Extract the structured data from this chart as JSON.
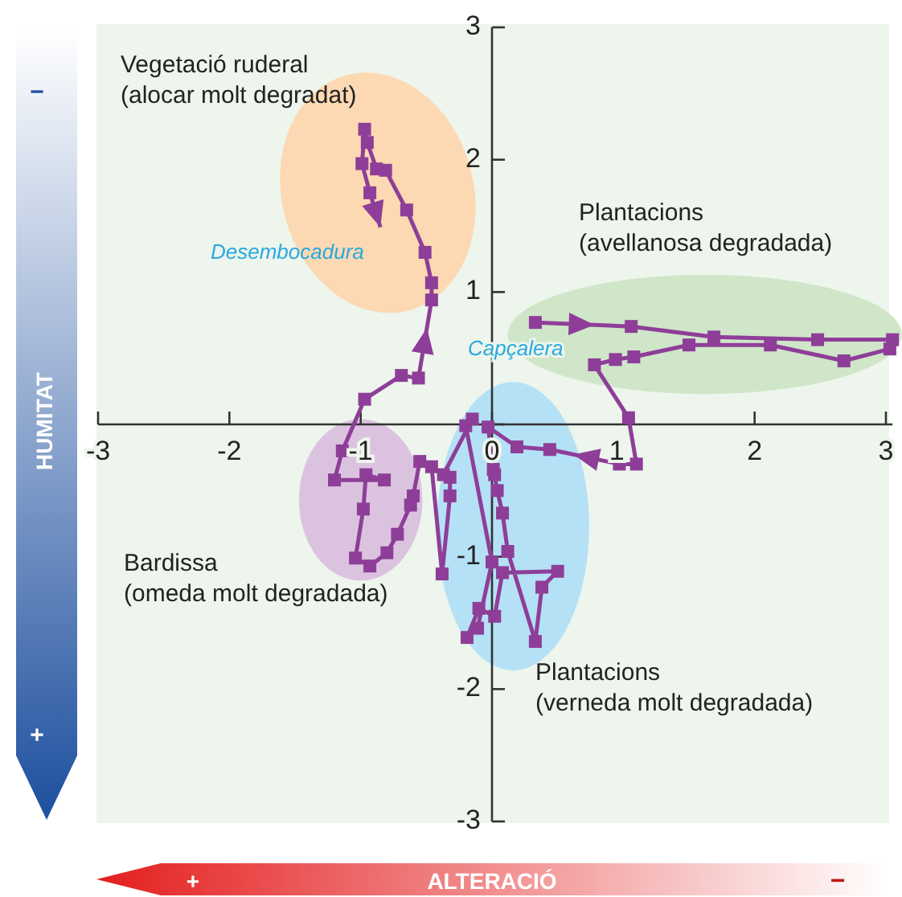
{
  "chart_data": {
    "type": "line",
    "xlabel": "ALTERACIÓ",
    "ylabel": "HUMITAT",
    "xlim": [
      -3,
      3.05
    ],
    "ylim": [
      -3,
      3
    ],
    "xticks": [
      -3,
      -2,
      -1,
      0,
      1,
      2,
      3
    ],
    "yticks": [
      -3,
      -2,
      -1,
      {
        "value": 0,
        "label": null
      },
      1,
      2,
      3
    ],
    "marker": "square",
    "line_style": "solid",
    "grid": false,
    "series": [
      {
        "color": "#8e3e98",
        "x": [
          0.33,
          1.06,
          1.69,
          2.48,
          3.05,
          3.03,
          2.68,
          2.12,
          1.5,
          1.08,
          0.94,
          0.78,
          1.04,
          1.1,
          0.97,
          0.44,
          0.19,
          -0.03,
          0.01,
          0.02,
          0.04,
          0.08,
          0.12,
          0.33,
          0.38,
          0.5,
          0.08,
          0.02,
          -0.1,
          -0.19,
          -0.11,
          0.0,
          -0.2,
          -0.15,
          -0.37,
          -0.32,
          -0.32,
          -0.38,
          -0.46,
          -0.55,
          -0.6,
          -0.62,
          -0.72,
          -0.8,
          -0.93,
          -1.04,
          -0.98,
          -0.96,
          -0.82,
          -1.2,
          -1.14,
          -0.97,
          -0.69,
          -0.56,
          -0.46,
          -0.46,
          -0.51,
          -0.65,
          -0.81,
          -0.88,
          -0.95,
          -0.97,
          -0.99,
          -0.93,
          -0.85
        ],
        "values": [
          0.77,
          0.74,
          0.66,
          0.64,
          0.64,
          0.57,
          0.48,
          0.6,
          0.6,
          0.51,
          0.49,
          0.45,
          0.05,
          -0.3,
          -0.3,
          -0.19,
          -0.17,
          -0.02,
          -0.34,
          -0.38,
          -0.5,
          -0.67,
          -0.96,
          -1.64,
          -1.23,
          -1.11,
          -1.12,
          -1.45,
          -1.39,
          -1.61,
          -1.54,
          -1.04,
          -0.01,
          0.04,
          -0.38,
          -0.4,
          -0.54,
          -1.13,
          -0.32,
          -0.28,
          -0.54,
          -0.61,
          -0.83,
          -0.97,
          -1.07,
          -1.01,
          -0.64,
          -0.38,
          -0.42,
          -0.42,
          -0.2,
          0.19,
          0.37,
          0.35,
          0.94,
          1.07,
          1.3,
          1.62,
          1.92,
          1.93,
          2.13,
          2.23,
          1.97,
          1.75,
          1.49
        ]
      }
    ],
    "annotations": [
      "Vegetació ruderal\n(alocar molt degradat)",
      "Plantacions\n(avellanosa degradada)",
      "Bardissa\n(omeda molt degradada)",
      "Plantacions\n(verneda molt degradada)",
      "Desembocadura",
      "Capçalera",
      "−",
      "+",
      "+",
      "−"
    ]
  }
}
